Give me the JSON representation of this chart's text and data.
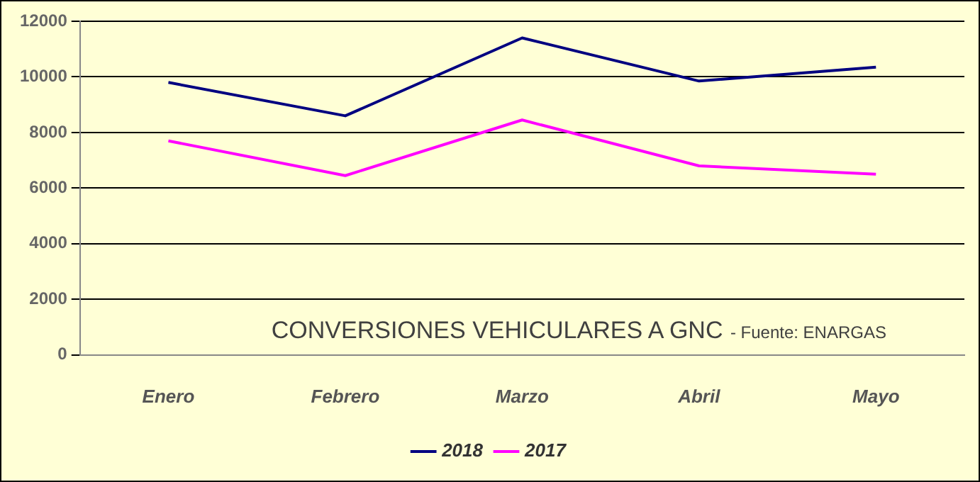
{
  "chart_data": {
    "type": "line",
    "title": "CONVERSIONES VEHICULARES A GNC",
    "annotations": [
      "- Fuente: ENARGAS"
    ],
    "categories": [
      "Enero",
      "Febrero",
      "Marzo",
      "Abril",
      "Mayo"
    ],
    "series": [
      {
        "name": "2018",
        "color": "#000080",
        "values": [
          9800,
          8600,
          11400,
          9850,
          10350
        ]
      },
      {
        "name": "2017",
        "color": "#ff00ff",
        "values": [
          7700,
          6450,
          8450,
          6800,
          6500
        ]
      }
    ],
    "ylim": [
      0,
      12000
    ],
    "yticks": [
      0,
      2000,
      4000,
      6000,
      8000,
      10000,
      12000
    ],
    "grid": "y",
    "legend": "bottom",
    "marker": "none",
    "line_style": "solid"
  }
}
